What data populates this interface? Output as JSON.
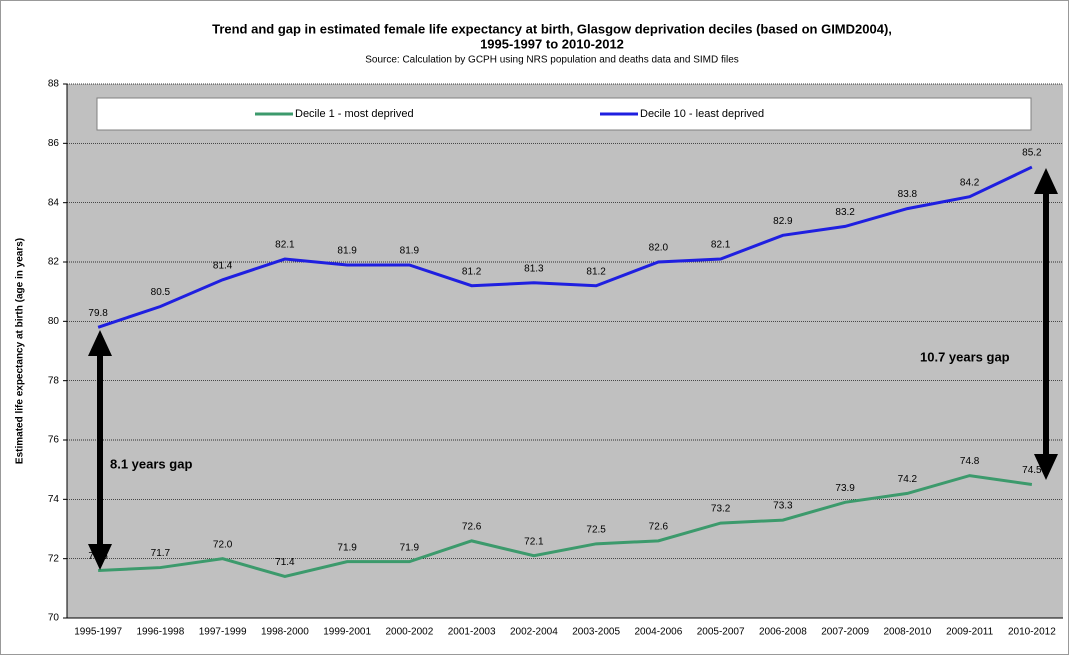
{
  "chart_data": {
    "type": "line",
    "title": [
      "Trend and gap in estimated female life expectancy at birth, Glasgow deprivation deciles (based on GIMD2004),",
      "1995-1997 to 2010-2012"
    ],
    "subtitle": "Source: Calculation by GCPH using NRS population and deaths data and SIMD files",
    "y_label": "Estimated life expectancy at birth (age in years)",
    "categories": [
      "1995-1997",
      "1996-1998",
      "1997-1999",
      "1998-2000",
      "1999-2001",
      "2000-2002",
      "2001-2003",
      "2002-2004",
      "2003-2005",
      "2004-2006",
      "2005-2007",
      "2006-2008",
      "2007-2009",
      "2008-2010",
      "2009-2011",
      "2010-2012"
    ],
    "series": [
      {
        "name": "Decile 1 - most deprived",
        "color": "#3c9a6c",
        "values": [
          71.6,
          71.7,
          72.0,
          71.4,
          71.9,
          71.9,
          72.6,
          72.1,
          72.5,
          72.6,
          73.2,
          73.3,
          73.9,
          74.2,
          74.8,
          74.5
        ],
        "value_labels": [
          "71.6",
          "71.7",
          "72.0",
          "71.4",
          "71.9",
          "71.9",
          "72.6",
          "72.1",
          "72.5",
          "72.6",
          "73.2",
          "73.3",
          "73.9",
          "74.2",
          "74.8",
          "74.5"
        ]
      },
      {
        "name": "Decile 10 - least deprived",
        "color": "#1f1fe0",
        "values": [
          79.8,
          80.5,
          81.4,
          82.1,
          81.9,
          81.9,
          81.2,
          81.3,
          81.2,
          82.0,
          82.1,
          82.9,
          83.2,
          83.8,
          84.2,
          85.2
        ],
        "value_labels": [
          "79.8",
          "80.5",
          "81.4",
          "82.1",
          "81.9",
          "81.9",
          "81.2",
          "81.3",
          "81.2",
          "82.0",
          "82.1",
          "82.9",
          "83.2",
          "83.8",
          "84.2",
          "85.2"
        ]
      }
    ],
    "ylim": [
      70,
      88
    ],
    "yticks": [
      70,
      72,
      74,
      76,
      78,
      80,
      82,
      84,
      86,
      88
    ],
    "grid": true,
    "annotations": [
      "8.1 years gap",
      "10.7 years gap"
    ]
  }
}
